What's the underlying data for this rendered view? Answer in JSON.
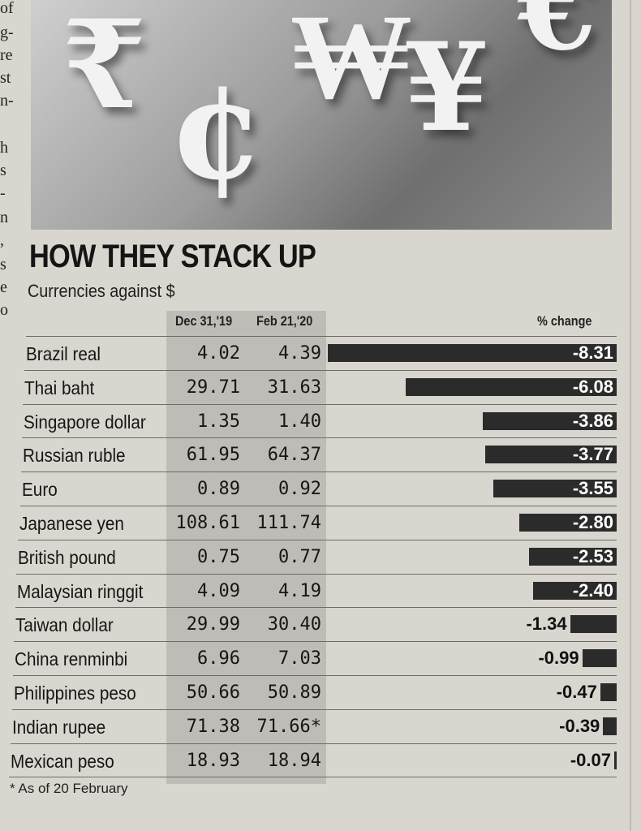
{
  "left_column_fragments": [
    "of",
    "g-",
    "re",
    "st",
    "n-",
    "h",
    "s",
    "-",
    "n",
    ",",
    "s",
    "e",
    "o"
  ],
  "photo": {
    "description_icon": "currency-symbols-photo",
    "glyphs": [
      "₹",
      "¢",
      "₩",
      "¥",
      "€"
    ]
  },
  "chart_data": {
    "type": "table",
    "title": "HOW THEY STACK UP",
    "subtitle": "Currencies against $",
    "columns": [
      "Dec 31,'19",
      "Feb 21,'20",
      "% change"
    ],
    "rows": [
      {
        "currency": "Brazil real",
        "dec31_19": "4.02",
        "feb21_20": "4.39",
        "pct_change": -8.31
      },
      {
        "currency": "Thai baht",
        "dec31_19": "29.71",
        "feb21_20": "31.63",
        "pct_change": -6.08
      },
      {
        "currency": "Singapore dollar",
        "dec31_19": "1.35",
        "feb21_20": "1.40",
        "pct_change": -3.86
      },
      {
        "currency": "Russian ruble",
        "dec31_19": "61.95",
        "feb21_20": "64.37",
        "pct_change": -3.77
      },
      {
        "currency": "Euro",
        "dec31_19": "0.89",
        "feb21_20": "0.92",
        "pct_change": -3.55
      },
      {
        "currency": "Japanese yen",
        "dec31_19": "108.61",
        "feb21_20": "111.74",
        "pct_change": -2.8
      },
      {
        "currency": "British pound",
        "dec31_19": "0.75",
        "feb21_20": "0.77",
        "pct_change": -2.53
      },
      {
        "currency": "Malaysian ringgit",
        "dec31_19": "4.09",
        "feb21_20": "4.19",
        "pct_change": -2.4
      },
      {
        "currency": "Taiwan dollar",
        "dec31_19": "29.99",
        "feb21_20": "30.40",
        "pct_change": -1.34
      },
      {
        "currency": "China renminbi",
        "dec31_19": "6.96",
        "feb21_20": "7.03",
        "pct_change": -0.99
      },
      {
        "currency": "Philippines peso",
        "dec31_19": "50.66",
        "feb21_20": "50.89",
        "pct_change": -0.47
      },
      {
        "currency": "Indian rupee",
        "dec31_19": "71.38",
        "feb21_20": "71.66*",
        "pct_change": -0.39
      },
      {
        "currency": "Mexican peso",
        "dec31_19": "18.93",
        "feb21_20": "18.94",
        "pct_change": -0.07
      }
    ],
    "pct_labels": [
      "-8.31",
      "-6.08",
      "-3.86",
      "-3.77",
      "-3.55",
      "-2.80",
      "-2.53",
      "-2.40",
      "-1.34",
      "-0.99",
      "-0.47",
      "-0.39",
      "-0.07"
    ],
    "bar_scale_max": 8.31,
    "footnote": "* As of 20 February",
    "colors": {
      "bar": "#2b2b2b",
      "shade": "#a09e98",
      "paper": "#d9d6cf"
    }
  }
}
